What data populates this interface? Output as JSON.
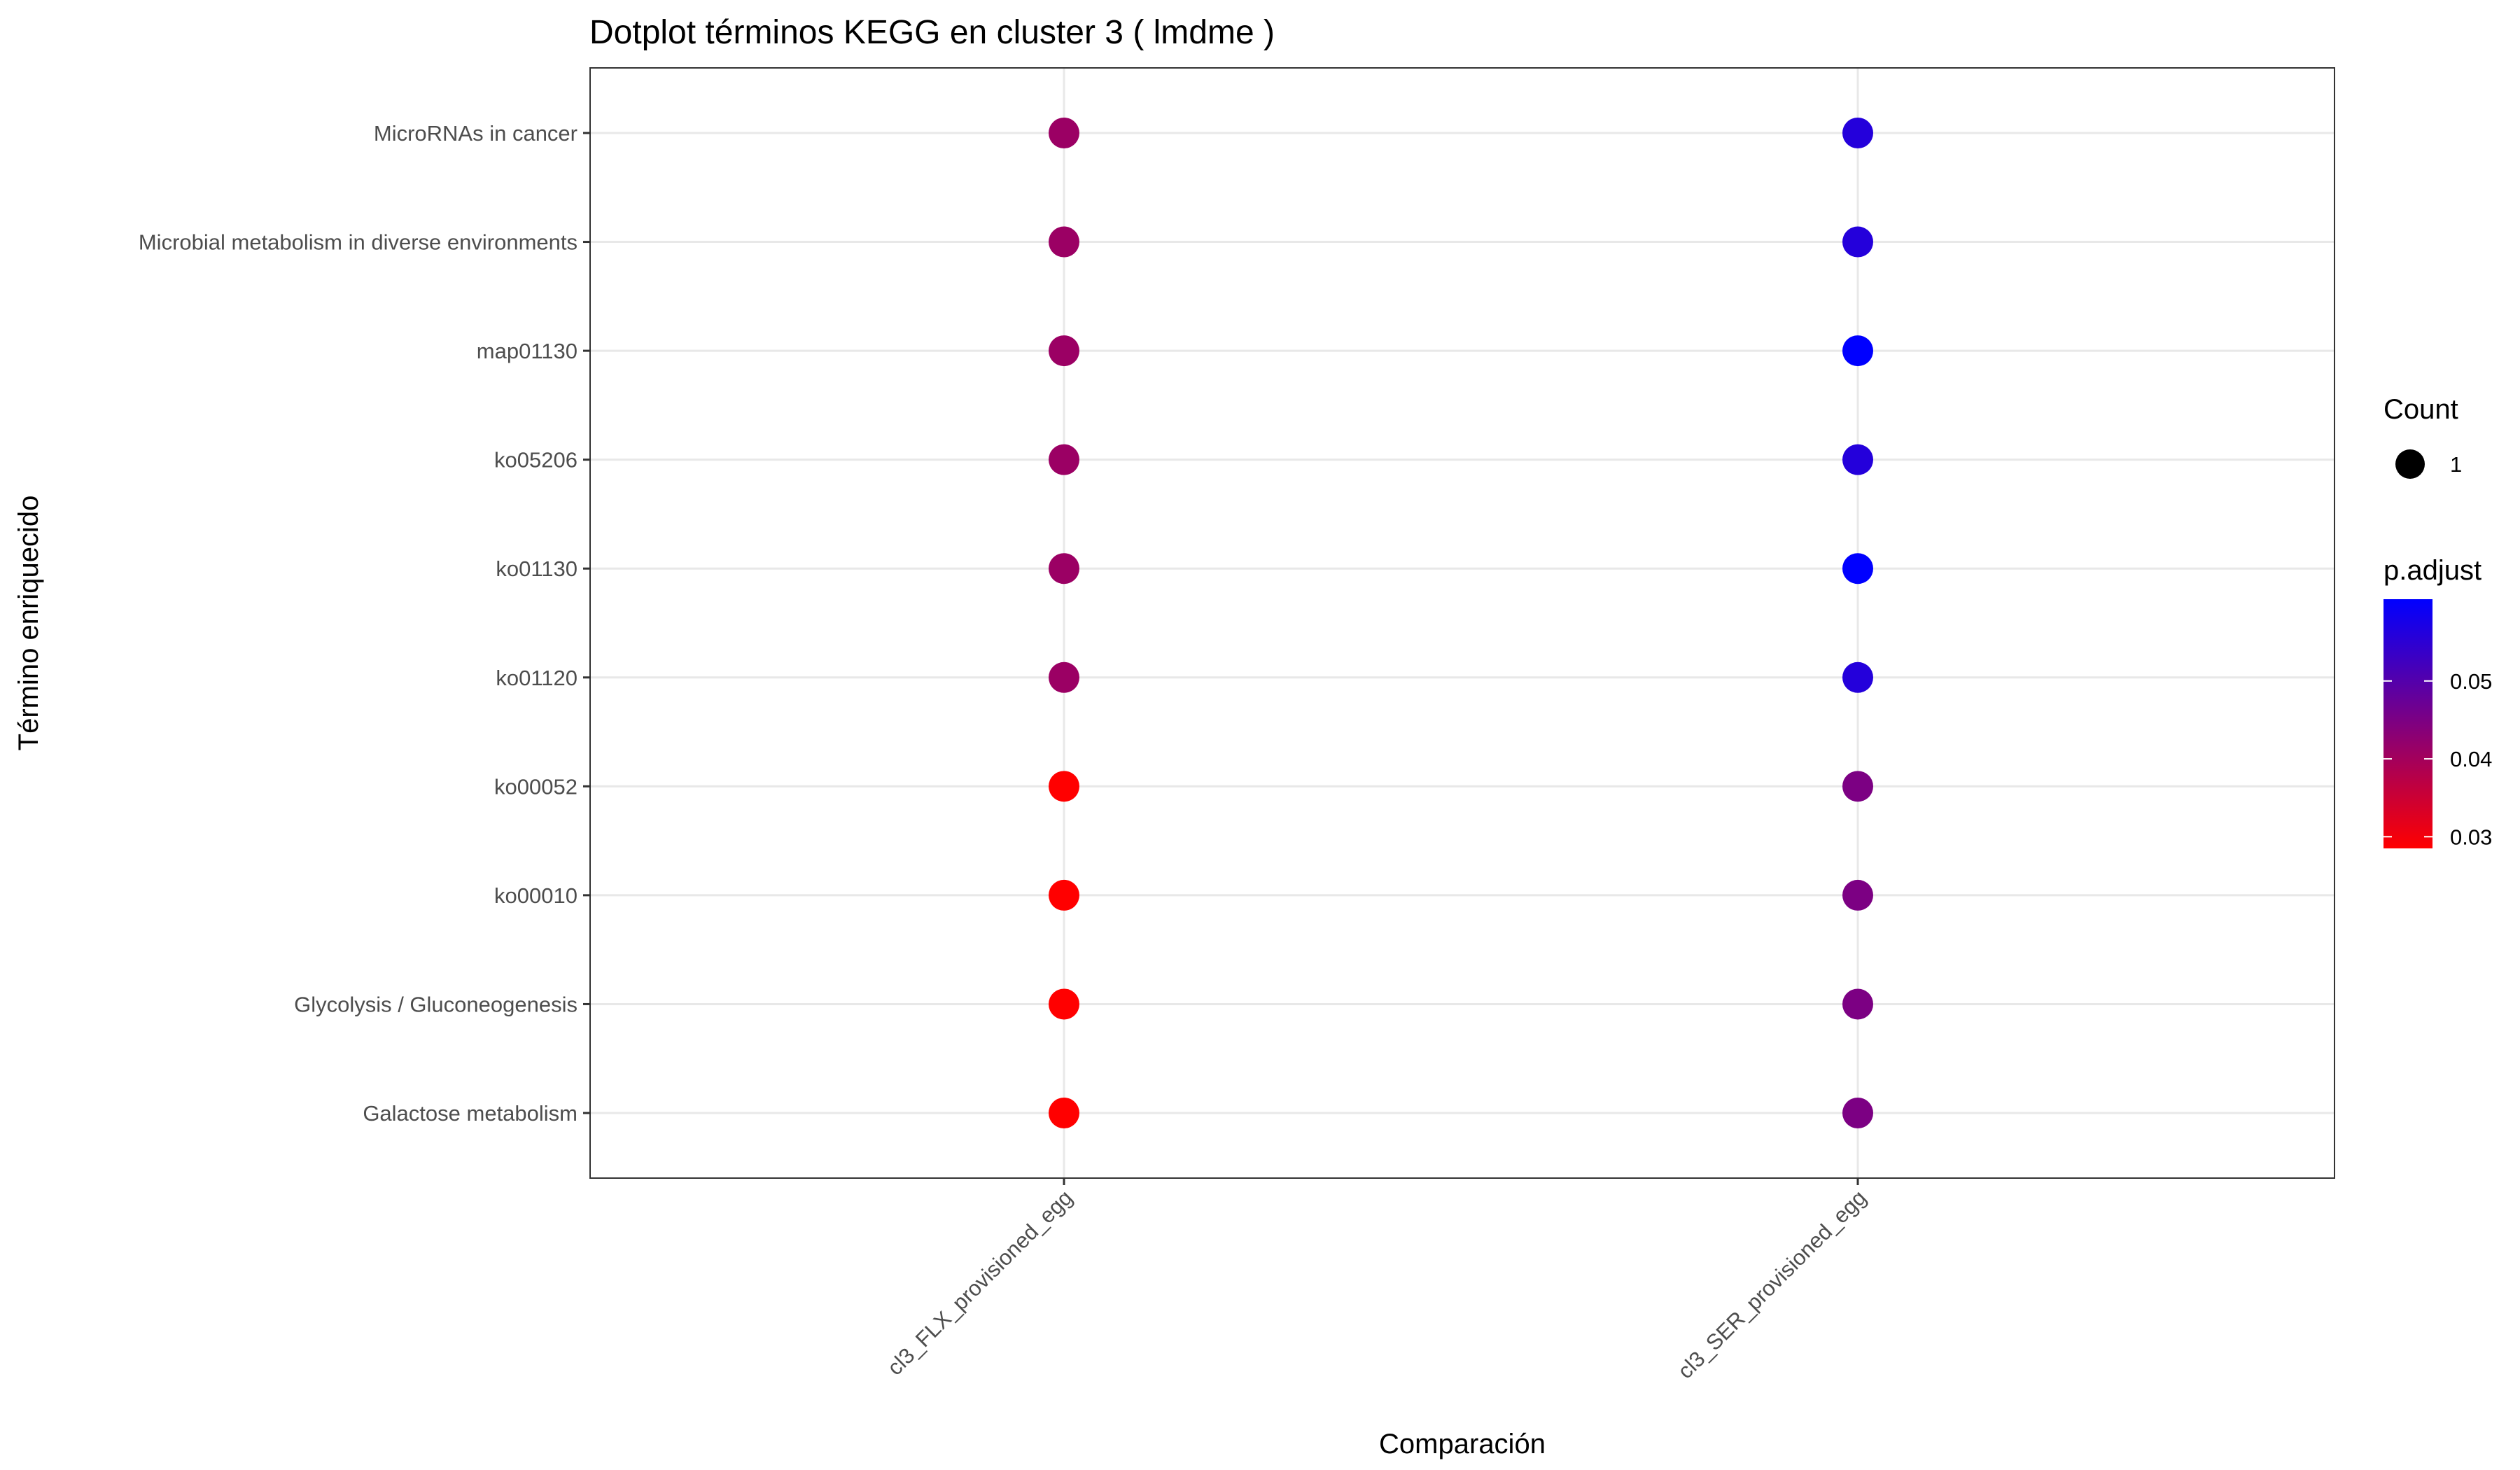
{
  "chart_data": {
    "type": "scatter",
    "title": "Dotplot términos  KEGG  en cluster 3  ( lmdme )",
    "xlabel": "Comparación",
    "ylabel": "Término enriquecido",
    "categories_x": [
      "cl3_FLX_provisioned_egg",
      "cl3_SER_provisioned_egg"
    ],
    "categories_y": [
      "MicroRNAs in cancer",
      "Microbial metabolism in diverse environments",
      "map01130",
      "ko05206",
      "ko01130",
      "ko01120",
      "ko00052",
      "ko00010",
      "Glycolysis / Gluconeogenesis",
      "Galactose metabolism"
    ],
    "grid": true,
    "size_legend": {
      "title": "Count",
      "entries": [
        {
          "label": "1",
          "value": 1
        }
      ]
    },
    "color_legend": {
      "title": "p.adjust",
      "low_color": "#ff0000",
      "high_color": "#0000ff",
      "range": [
        0.0285,
        0.0605
      ],
      "ticks": [
        {
          "label": "0.03",
          "value": 0.03
        },
        {
          "label": "0.04",
          "value": 0.04
        },
        {
          "label": "0.05",
          "value": 0.05
        }
      ]
    },
    "points": [
      {
        "x": "cl3_FLX_provisioned_egg",
        "y": "MicroRNAs in cancer",
        "count": 1,
        "p_adjust": 0.041
      },
      {
        "x": "cl3_FLX_provisioned_egg",
        "y": "Microbial metabolism in diverse environments",
        "count": 1,
        "p_adjust": 0.041
      },
      {
        "x": "cl3_FLX_provisioned_egg",
        "y": "map01130",
        "count": 1,
        "p_adjust": 0.041
      },
      {
        "x": "cl3_FLX_provisioned_egg",
        "y": "ko05206",
        "count": 1,
        "p_adjust": 0.041
      },
      {
        "x": "cl3_FLX_provisioned_egg",
        "y": "ko01130",
        "count": 1,
        "p_adjust": 0.041
      },
      {
        "x": "cl3_FLX_provisioned_egg",
        "y": "ko01120",
        "count": 1,
        "p_adjust": 0.041
      },
      {
        "x": "cl3_FLX_provisioned_egg",
        "y": "ko00052",
        "count": 1,
        "p_adjust": 0.0285
      },
      {
        "x": "cl3_FLX_provisioned_egg",
        "y": "ko00010",
        "count": 1,
        "p_adjust": 0.0285
      },
      {
        "x": "cl3_FLX_provisioned_egg",
        "y": "Glycolysis / Gluconeogenesis",
        "count": 1,
        "p_adjust": 0.0285
      },
      {
        "x": "cl3_FLX_provisioned_egg",
        "y": "Galactose metabolism",
        "count": 1,
        "p_adjust": 0.0285
      },
      {
        "x": "cl3_SER_provisioned_egg",
        "y": "MicroRNAs in cancer",
        "count": 1,
        "p_adjust": 0.056
      },
      {
        "x": "cl3_SER_provisioned_egg",
        "y": "Microbial metabolism in diverse environments",
        "count": 1,
        "p_adjust": 0.056
      },
      {
        "x": "cl3_SER_provisioned_egg",
        "y": "map01130",
        "count": 1,
        "p_adjust": 0.0605
      },
      {
        "x": "cl3_SER_provisioned_egg",
        "y": "ko05206",
        "count": 1,
        "p_adjust": 0.056
      },
      {
        "x": "cl3_SER_provisioned_egg",
        "y": "ko01130",
        "count": 1,
        "p_adjust": 0.0605
      },
      {
        "x": "cl3_SER_provisioned_egg",
        "y": "ko01120",
        "count": 1,
        "p_adjust": 0.056
      },
      {
        "x": "cl3_SER_provisioned_egg",
        "y": "ko00052",
        "count": 1,
        "p_adjust": 0.045
      },
      {
        "x": "cl3_SER_provisioned_egg",
        "y": "ko00010",
        "count": 1,
        "p_adjust": 0.045
      },
      {
        "x": "cl3_SER_provisioned_egg",
        "y": "Glycolysis / Gluconeogenesis",
        "count": 1,
        "p_adjust": 0.045
      },
      {
        "x": "cl3_SER_provisioned_egg",
        "y": "Galactose metabolism",
        "count": 1,
        "p_adjust": 0.045
      }
    ]
  }
}
